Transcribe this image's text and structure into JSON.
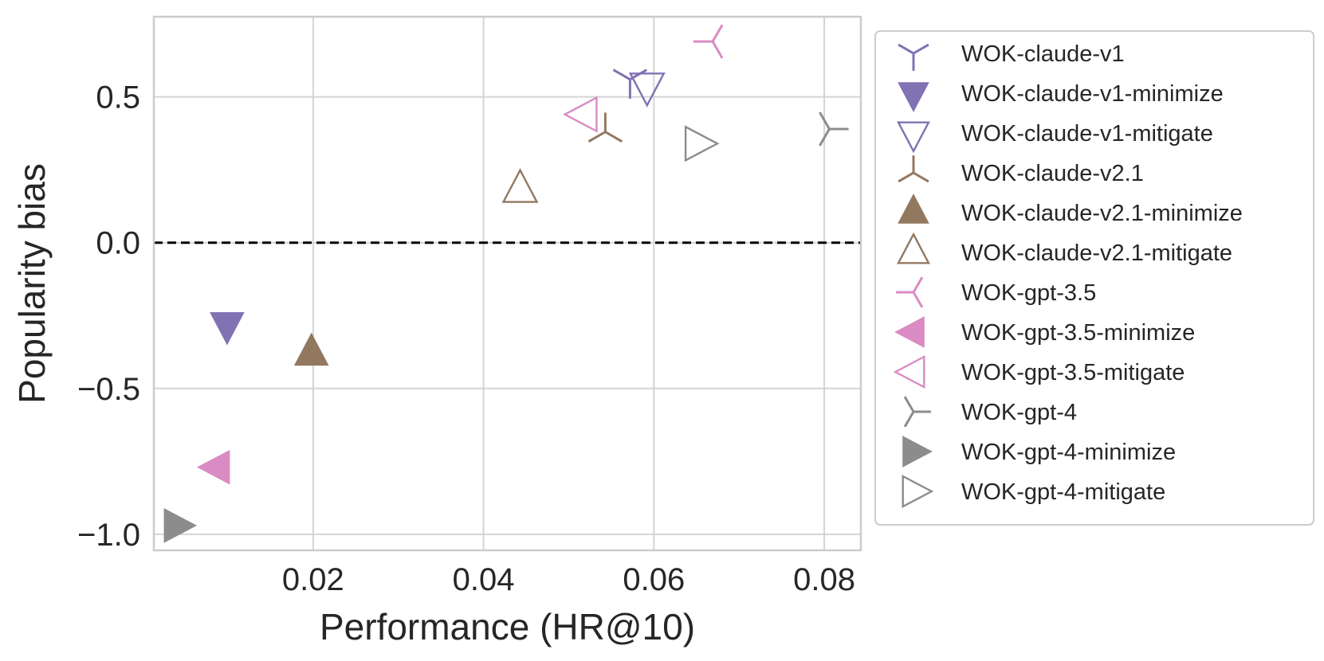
{
  "chart_data": {
    "type": "scatter",
    "title": "",
    "xlabel": "Performance (HR@10)",
    "ylabel": "Popularity bias",
    "xlim": [
      0.0013,
      0.0843
    ],
    "ylim": [
      -1.055,
      0.775
    ],
    "x_ticks": [
      0.02,
      0.04,
      0.06,
      0.08
    ],
    "y_ticks": [
      0.5,
      0.0,
      -0.5,
      -1.0
    ],
    "x_tick_labels": [
      "0.02",
      "0.04",
      "0.06",
      "0.08"
    ],
    "y_tick_labels": [
      "0.5",
      "0.0",
      "−0.5",
      "−1.0"
    ],
    "grid": true,
    "reference_line": {
      "y": 0.0,
      "style": "dashed",
      "color": "#000000"
    },
    "legend_position": "outside-right",
    "series": [
      {
        "name": "WOK-claude-v1",
        "marker": "tri_down",
        "color": "#8172b3",
        "filled": false,
        "x": 0.0572,
        "y": 0.56
      },
      {
        "name": "WOK-claude-v1-minimize",
        "marker": "triangle_down",
        "color": "#8172b3",
        "filled": true,
        "x": 0.0099,
        "y": -0.28
      },
      {
        "name": "WOK-claude-v1-mitigate",
        "marker": "triangle_down",
        "color": "#8172b3",
        "filled": false,
        "x": 0.0592,
        "y": 0.54
      },
      {
        "name": "WOK-claude-v2.1",
        "marker": "tri_up",
        "color": "#937860",
        "filled": false,
        "x": 0.0543,
        "y": 0.38
      },
      {
        "name": "WOK-claude-v2.1-minimize",
        "marker": "triangle_up",
        "color": "#937860",
        "filled": true,
        "x": 0.0198,
        "y": -0.38
      },
      {
        "name": "WOK-claude-v2.1-mitigate",
        "marker": "triangle_up",
        "color": "#937860",
        "filled": false,
        "x": 0.0443,
        "y": 0.18
      },
      {
        "name": "WOK-gpt-3.5",
        "marker": "tri_left",
        "color": "#da8bc3",
        "filled": false,
        "x": 0.0669,
        "y": 0.69
      },
      {
        "name": "WOK-gpt-3.5-minimize",
        "marker": "triangle_left",
        "color": "#da8bc3",
        "filled": true,
        "x": 0.0088,
        "y": -0.77
      },
      {
        "name": "WOK-gpt-3.5-mitigate",
        "marker": "triangle_left",
        "color": "#da8bc3",
        "filled": false,
        "x": 0.0519,
        "y": 0.44
      },
      {
        "name": "WOK-gpt-4",
        "marker": "tri_right",
        "color": "#8c8c8c",
        "filled": false,
        "x": 0.0806,
        "y": 0.39
      },
      {
        "name": "WOK-gpt-4-minimize",
        "marker": "triangle_right",
        "color": "#8c8c8c",
        "filled": true,
        "x": 0.0039,
        "y": -0.97
      },
      {
        "name": "WOK-gpt-4-mitigate",
        "marker": "triangle_right",
        "color": "#8c8c8c",
        "filled": false,
        "x": 0.0651,
        "y": 0.34
      }
    ]
  }
}
